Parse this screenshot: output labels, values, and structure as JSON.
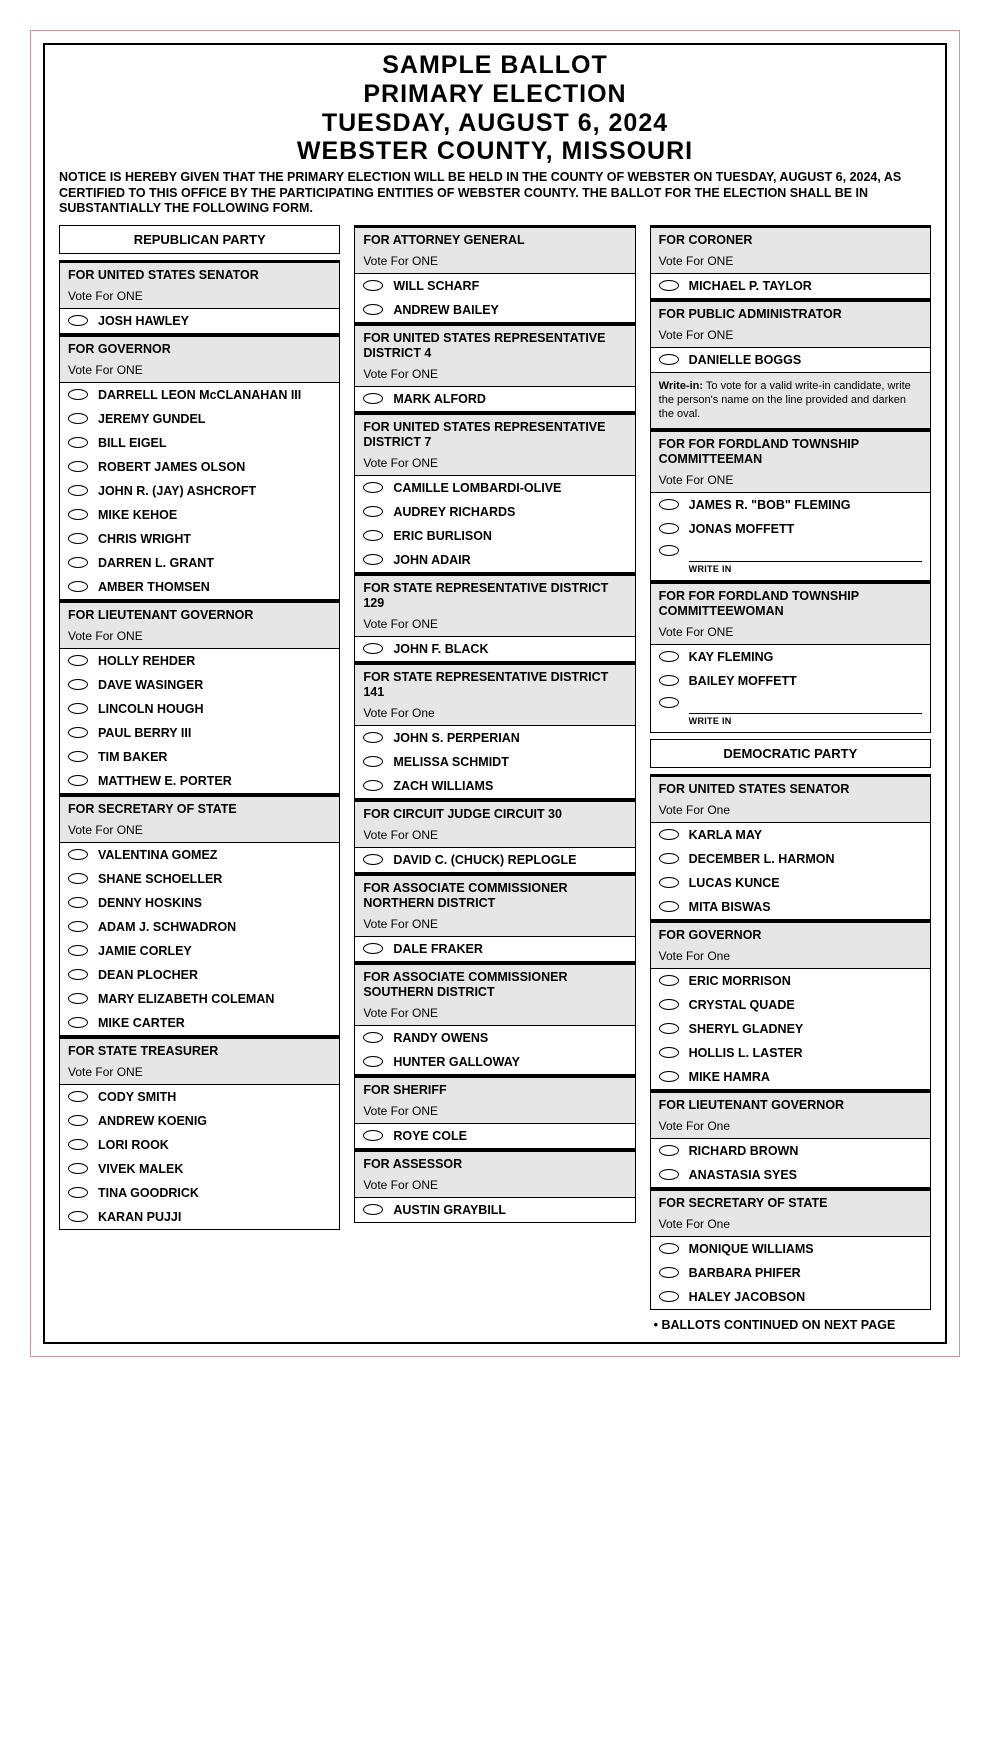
{
  "header": {
    "line1": "SAMPLE BALLOT",
    "line2": "PRIMARY ELECTION",
    "line3": "TUESDAY, AUGUST 6, 2024",
    "line4": "WEBSTER COUNTY, MISSOURI",
    "notice": "NOTICE IS HEREBY GIVEN THAT THE PRIMARY ELECTION WILL BE HELD IN THE COUNTY OF WEBSTER ON TUESDAY, AUGUST 6, 2024, AS CERTIFIED TO THIS OFFICE BY THE PARTICIPATING ENTITIES OF WEBSTER COUNTY. THE BALLOT FOR THE ELECTION SHALL BE IN SUBSTANTIALLY THE FOLLOWING FORM."
  },
  "parties": {
    "republican": "REPUBLICAN PARTY",
    "democratic": "DEMOCRATIC PARTY"
  },
  "vote_one": "Vote For ONE",
  "vote_one_lc": "Vote For One",
  "writein_hint": "To vote for a valid write-in candidate, write the person's name on the line provided and darken the oval.",
  "writein_label": "WRITE IN",
  "continued": "• BALLOTS CONTINUED ON NEXT PAGE",
  "col1": {
    "r1": {
      "title": "FOR UNITED STATES SENATOR",
      "c": [
        "JOSH HAWLEY"
      ]
    },
    "r2": {
      "title": "FOR GOVERNOR",
      "c": [
        "DARRELL LEON McCLANAHAN III",
        "JEREMY GUNDEL",
        "BILL EIGEL",
        "ROBERT JAMES OLSON",
        "JOHN R. (JAY) ASHCROFT",
        "MIKE KEHOE",
        "CHRIS WRIGHT",
        "DARREN L. GRANT",
        "AMBER THOMSEN"
      ]
    },
    "r3": {
      "title": "FOR LIEUTENANT GOVERNOR",
      "c": [
        "HOLLY REHDER",
        "DAVE WASINGER",
        "LINCOLN HOUGH",
        "PAUL BERRY III",
        "TIM BAKER",
        "MATTHEW E. PORTER"
      ]
    },
    "r4": {
      "title": "FOR SECRETARY OF STATE",
      "c": [
        "VALENTINA GOMEZ",
        "SHANE SCHOELLER",
        "DENNY HOSKINS",
        "ADAM J. SCHWADRON",
        "JAMIE CORLEY",
        "DEAN PLOCHER",
        "MARY ELIZABETH COLEMAN",
        "MIKE CARTER"
      ]
    },
    "r5": {
      "title": "FOR STATE TREASURER",
      "c": [
        "CODY SMITH",
        "ANDREW KOENIG",
        "LORI ROOK",
        "VIVEK MALEK",
        "TINA GOODRICK",
        "KARAN PUJJI"
      ]
    }
  },
  "col2": {
    "r1": {
      "title": "FOR ATTORNEY GENERAL",
      "c": [
        "WILL SCHARF",
        "ANDREW BAILEY"
      ]
    },
    "r2": {
      "title": "FOR UNITED STATES REPRESENTATIVE DISTRICT 4",
      "c": [
        "MARK ALFORD"
      ]
    },
    "r3": {
      "title": "FOR UNITED STATES REPRESENTATIVE DISTRICT 7",
      "c": [
        "CAMILLE LOMBARDI-OLIVE",
        "AUDREY RICHARDS",
        "ERIC BURLISON",
        "JOHN ADAIR"
      ]
    },
    "r4": {
      "title": "FOR STATE REPRESENTATIVE DISTRICT 129",
      "c": [
        "JOHN F. BLACK"
      ]
    },
    "r5": {
      "title": "FOR STATE REPRESENTATIVE DISTRICT 141",
      "c": [
        "JOHN S. PERPERIAN",
        "MELISSA SCHMIDT",
        "ZACH WILLIAMS"
      ]
    },
    "r6": {
      "title": "FOR CIRCUIT JUDGE CIRCUIT 30",
      "c": [
        "DAVID C. (CHUCK) REPLOGLE"
      ]
    },
    "r7": {
      "title": "FOR ASSOCIATE COMMISSIONER NORTHERN DISTRICT",
      "c": [
        "DALE FRAKER"
      ]
    },
    "r8": {
      "title": "FOR ASSOCIATE COMMISSIONER SOUTHERN DISTRICT",
      "c": [
        "RANDY OWENS",
        "HUNTER GALLOWAY"
      ]
    },
    "r9": {
      "title": "FOR SHERIFF",
      "c": [
        "ROYE COLE"
      ]
    },
    "r10": {
      "title": "FOR ASSESSOR",
      "c": [
        "AUSTIN GRAYBILL"
      ]
    }
  },
  "col3": {
    "r1": {
      "title": "FOR CORONER",
      "c": [
        "MICHAEL P. TAYLOR"
      ]
    },
    "r2": {
      "title": "FOR PUBLIC ADMINISTRATOR",
      "c": [
        "DANIELLE BOGGS"
      ]
    },
    "r3": {
      "title": "FOR FOR FORDLAND TOWNSHIP COMMITTEEMAN",
      "c": [
        "JAMES R. \"BOB\" FLEMING",
        "JONAS MOFFETT"
      ]
    },
    "r4": {
      "title": "FOR FOR FORDLAND TOWNSHIP COMMITTEEWOMAN",
      "c": [
        "KAY FLEMING",
        "BAILEY MOFFETT"
      ]
    },
    "d1": {
      "title": "FOR UNITED STATES SENATOR",
      "c": [
        "KARLA MAY",
        "DECEMBER L. HARMON",
        "LUCAS KUNCE",
        "MITA BISWAS"
      ]
    },
    "d2": {
      "title": "FOR GOVERNOR",
      "c": [
        "ERIC MORRISON",
        "CRYSTAL QUADE",
        "SHERYL GLADNEY",
        "HOLLIS L. LASTER",
        "MIKE HAMRA"
      ]
    },
    "d3": {
      "title": "FOR LIEUTENANT GOVERNOR",
      "c": [
        "RICHARD BROWN",
        "ANASTASIA SYES"
      ]
    },
    "d4": {
      "title": "FOR SECRETARY OF STATE",
      "c": [
        "MONIQUE WILLIAMS",
        "BARBARA PHIFER",
        "HALEY JACOBSON"
      ]
    }
  }
}
